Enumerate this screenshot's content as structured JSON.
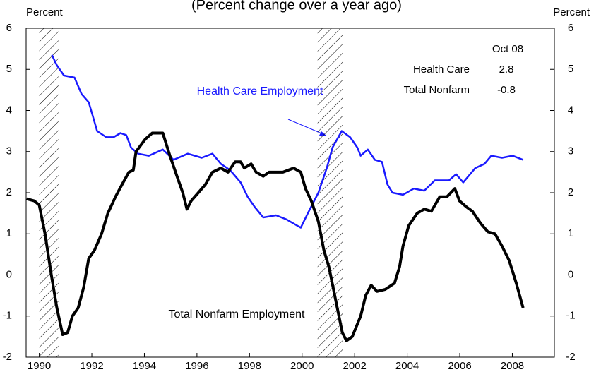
{
  "chart_data": {
    "type": "line",
    "subtitle": "(Percent change over a year ago)",
    "y_label": "Percent",
    "y2_label": "Percent",
    "xlim": [
      1989.5,
      2009.6
    ],
    "ylim": [
      -2,
      6
    ],
    "y2lim": [
      -2,
      6
    ],
    "xticks": [
      1990,
      1992,
      1994,
      1996,
      1998,
      2000,
      2002,
      2004,
      2006,
      2008
    ],
    "yticks": [
      -2,
      -1,
      0,
      1,
      2,
      3,
      4,
      5,
      6
    ],
    "y2ticks": [
      -2,
      -1,
      0,
      1,
      2,
      3,
      4,
      5,
      6
    ],
    "recessions": [
      [
        1990.0,
        1990.73
      ],
      [
        2000.59,
        2001.56
      ]
    ],
    "series": [
      {
        "name": "Health Care Employment",
        "color": "#1a1aff",
        "x": [
          1990.48,
          1990.67,
          1990.94,
          1991.34,
          1991.61,
          1991.88,
          1992.02,
          1992.2,
          1992.55,
          1992.82,
          1993.09,
          1993.31,
          1993.49,
          1993.76,
          1994.17,
          1994.7,
          1995.11,
          1995.65,
          1996.18,
          1996.59,
          1996.91,
          1997.26,
          1997.66,
          1997.93,
          1998.2,
          1998.52,
          1999.01,
          1999.41,
          1999.81,
          1999.95,
          2000.22,
          2000.62,
          2000.94,
          2001.16,
          2001.51,
          2001.83,
          2002.1,
          2002.23,
          2002.5,
          2002.77,
          2003.04,
          2003.25,
          2003.44,
          2003.84,
          2004.25,
          2004.65,
          2005.05,
          2005.59,
          2005.86,
          2006.13,
          2006.59,
          2006.94,
          2007.2,
          2007.61,
          2008.01,
          2008.41
        ],
        "values": [
          5.35,
          5.1,
          4.85,
          4.8,
          4.4,
          4.2,
          3.9,
          3.5,
          3.35,
          3.35,
          3.45,
          3.4,
          3.1,
          2.95,
          2.9,
          3.05,
          2.8,
          2.95,
          2.85,
          2.95,
          2.7,
          2.55,
          2.25,
          1.9,
          1.65,
          1.4,
          1.45,
          1.35,
          1.2,
          1.15,
          1.5,
          2.0,
          2.6,
          3.1,
          3.5,
          3.35,
          3.1,
          2.9,
          3.05,
          2.8,
          2.75,
          2.2,
          2.0,
          1.95,
          2.1,
          2.05,
          2.3,
          2.3,
          2.45,
          2.25,
          2.6,
          2.7,
          2.9,
          2.85,
          2.9,
          2.8
        ]
      },
      {
        "name": "Total Nonfarm Employment",
        "color": "#000000",
        "x": [
          1989.52,
          1989.81,
          1990.0,
          1990.22,
          1990.46,
          1990.67,
          1990.89,
          1991.08,
          1991.26,
          1991.48,
          1991.69,
          1991.88,
          1992.1,
          1992.37,
          1992.61,
          1992.9,
          1993.15,
          1993.41,
          1993.58,
          1993.68,
          1994.03,
          1994.3,
          1994.7,
          1994.97,
          1995.24,
          1995.46,
          1995.62,
          1995.78,
          1996.05,
          1996.32,
          1996.59,
          1996.91,
          1997.18,
          1997.45,
          1997.66,
          1997.8,
          1998.06,
          1998.25,
          1998.52,
          1998.74,
          1999.27,
          1999.68,
          1999.95,
          2000.13,
          2000.35,
          2000.62,
          2000.83,
          2001.02,
          2001.21,
          2001.37,
          2001.53,
          2001.69,
          2001.91,
          2002.23,
          2002.42,
          2002.63,
          2002.85,
          2003.17,
          2003.52,
          2003.71,
          2003.84,
          2004.06,
          2004.38,
          2004.65,
          2004.92,
          2005.24,
          2005.51,
          2005.81,
          2005.99,
          2006.26,
          2006.48,
          2006.8,
          2007.07,
          2007.34,
          2007.61,
          2007.88,
          2008.15,
          2008.41
        ],
        "values": [
          1.85,
          1.8,
          1.7,
          1.0,
          0.0,
          -0.8,
          -1.45,
          -1.4,
          -1.0,
          -0.8,
          -0.3,
          0.4,
          0.6,
          1.0,
          1.5,
          1.9,
          2.2,
          2.5,
          2.55,
          3.0,
          3.3,
          3.45,
          3.45,
          2.9,
          2.4,
          2.0,
          1.6,
          1.8,
          2.0,
          2.2,
          2.5,
          2.6,
          2.5,
          2.75,
          2.75,
          2.6,
          2.7,
          2.5,
          2.4,
          2.5,
          2.5,
          2.6,
          2.5,
          2.1,
          1.8,
          1.3,
          0.6,
          0.2,
          -0.4,
          -0.9,
          -1.4,
          -1.6,
          -1.5,
          -1.0,
          -0.5,
          -0.25,
          -0.4,
          -0.35,
          -0.2,
          0.2,
          0.7,
          1.2,
          1.5,
          1.6,
          1.55,
          1.9,
          1.9,
          2.1,
          1.8,
          1.65,
          1.55,
          1.25,
          1.05,
          1.0,
          0.7,
          0.35,
          -0.2,
          -0.8
        ]
      }
    ],
    "inset": {
      "header": "Oct 08",
      "rows": [
        [
          "Health Care",
          2.8
        ],
        [
          "Total Nonfarm",
          -0.8
        ]
      ]
    }
  }
}
